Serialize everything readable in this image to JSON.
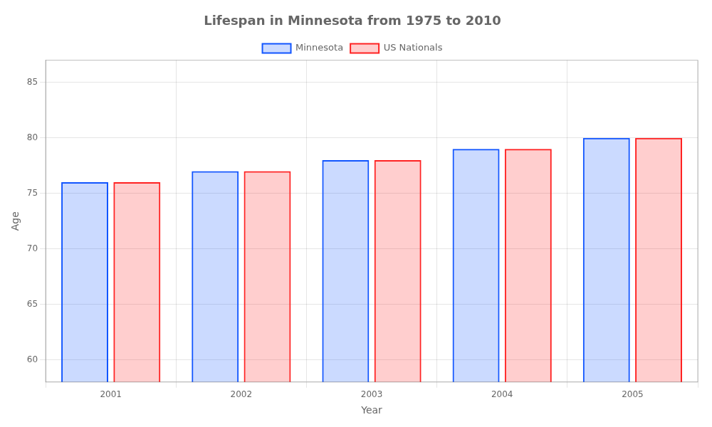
{
  "chart_data": {
    "type": "bar",
    "title": "Lifespan in Minnesota from 1975 to 2010",
    "xlabel": "Year",
    "ylabel": "Age",
    "categories": [
      "2001",
      "2002",
      "2003",
      "2004",
      "2005"
    ],
    "series": [
      {
        "name": "Minnesota",
        "color": "#1155ff",
        "values": [
          76,
          77,
          78,
          79,
          80
        ]
      },
      {
        "name": "US Nationals",
        "color": "#ff2222",
        "values": [
          76,
          77,
          78,
          79,
          80
        ]
      }
    ],
    "ylim": [
      58,
      87
    ],
    "yticks": [
      60,
      65,
      70,
      75,
      80,
      85
    ],
    "grid": true,
    "legend": "top"
  }
}
